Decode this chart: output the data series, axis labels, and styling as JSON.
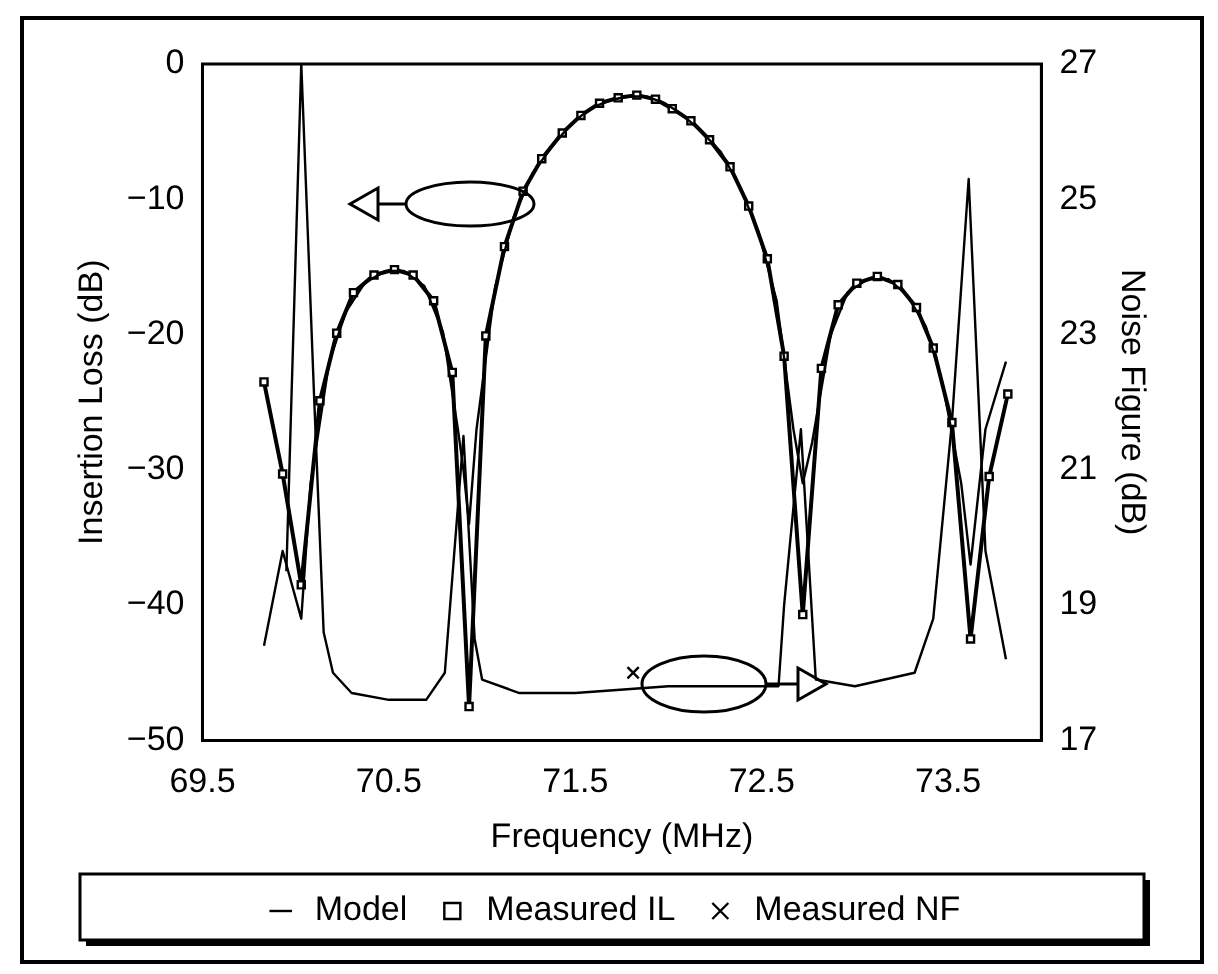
{
  "chart_data": {
    "type": "line",
    "xlabel": "Frequency (MHz)",
    "ylabel": "Insertion Loss (dB)",
    "y2label": "Noise Figure (dB)",
    "xlim": [
      69.5,
      74.0
    ],
    "xticks": [
      69.5,
      70.5,
      71.5,
      72.5,
      73.5
    ],
    "ylim": [
      -50,
      0
    ],
    "yticks": [
      0,
      -10,
      -20,
      -30,
      -40,
      -50
    ],
    "y2lim": [
      17,
      27
    ],
    "y2ticks": [
      17,
      19,
      21,
      23,
      25,
      27
    ],
    "legend": "bottom",
    "grid": false,
    "line_style": "solid",
    "series": [
      {
        "name": "Model",
        "color": "#000000",
        "marker": "none",
        "x": [
          69.83,
          69.93,
          70.03,
          70.08,
          70.18,
          70.27,
          70.37,
          70.48,
          70.58,
          70.69,
          70.79,
          70.87,
          70.9,
          70.93,
          70.97,
          71.07,
          71.17,
          71.27,
          71.38,
          71.48,
          71.58,
          71.68,
          71.78,
          71.88,
          71.98,
          72.07,
          72.17,
          72.28,
          72.38,
          72.48,
          72.58,
          72.67,
          72.72,
          72.77,
          72.87,
          72.96,
          73.07,
          73.18,
          73.28,
          73.38,
          73.47,
          73.57,
          73.62,
          73.7,
          73.81
        ],
        "values": [
          -43,
          -36,
          -41,
          -31,
          -22,
          -18.3,
          -16.2,
          -15.3,
          -15.3,
          -16.4,
          -19.8,
          -27,
          -30,
          -34,
          -27,
          -16.5,
          -11.3,
          -8.1,
          -6,
          -4.4,
          -3.3,
          -2.7,
          -2.4,
          -2.4,
          -2.9,
          -3.7,
          -4.9,
          -6.5,
          -9,
          -12.3,
          -17.5,
          -27,
          -31,
          -28,
          -20,
          -16.9,
          -15.9,
          -15.9,
          -17.1,
          -19.4,
          -23.6,
          -31,
          -37,
          -27,
          -22
        ]
      },
      {
        "name": "Measured IL",
        "color": "#000000",
        "marker": "square",
        "x": [
          69.83,
          69.93,
          70.03,
          70.13,
          70.22,
          70.31,
          70.42,
          70.53,
          70.63,
          70.74,
          70.84,
          70.93,
          71.02,
          71.12,
          71.22,
          71.32,
          71.43,
          71.53,
          71.63,
          71.73,
          71.83,
          71.93,
          72.02,
          72.12,
          72.22,
          72.33,
          72.43,
          72.53,
          72.62,
          72.72,
          72.82,
          72.91,
          73.01,
          73.12,
          73.23,
          73.33,
          73.42,
          73.52,
          73.62,
          73.72,
          73.82
        ],
        "values": [
          -23.5,
          -30.3,
          -38.5,
          -24.9,
          -19.9,
          -16.9,
          -15.6,
          -15.2,
          -15.6,
          -17.5,
          -22.8,
          -47.5,
          -20.1,
          -13.5,
          -9.4,
          -7,
          -5.1,
          -3.8,
          -2.9,
          -2.5,
          -2.3,
          -2.6,
          -3.3,
          -4.2,
          -5.6,
          -7.6,
          -10.5,
          -14.4,
          -21.6,
          -40.7,
          -22.5,
          -17.8,
          -16.2,
          -15.7,
          -16.3,
          -18,
          -21,
          -26.5,
          -42.5,
          -30.5,
          -24.4
        ]
      },
      {
        "name": "Measured NF",
        "type": "scatter",
        "color": "#000000",
        "marker": "cross",
        "axis": "y2",
        "x": [
          71.81
        ],
        "values": [
          18
        ]
      },
      {
        "color": "#000000",
        "marker": "none",
        "axis": "y2",
        "x": [
          69.95,
          70.03,
          70.1,
          70.15,
          70.2,
          70.3,
          70.5,
          70.7,
          70.8,
          70.9,
          70.96,
          71.0,
          71.2,
          71.5,
          72.0,
          72.3,
          72.59,
          72.62,
          72.71,
          72.79,
          73.0,
          73.32,
          73.42,
          73.52,
          73.61,
          73.7,
          73.81
        ],
        "values": [
          19.5,
          27,
          22,
          18.6,
          18,
          17.7,
          17.6,
          17.6,
          18,
          21.5,
          18.5,
          17.9,
          17.7,
          17.7,
          17.8,
          17.8,
          17.8,
          19,
          21.6,
          17.9,
          17.8,
          18,
          18.8,
          21.7,
          25.3,
          19.8,
          18.2
        ]
      }
    ]
  }
}
